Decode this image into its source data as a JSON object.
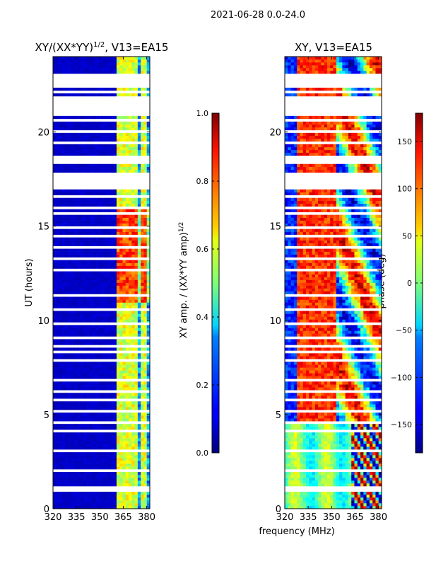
{
  "figure": {
    "suptitle": "2021-06-28 0.0-24.0"
  },
  "panel_amp": {
    "title_main": "XY/(XX*YY)",
    "title_sup": "1/2",
    "title_suffix": ", V13=EA15"
  },
  "panel_phase": {
    "title": "XY, V13=EA15"
  },
  "cbar_amp": {
    "label_main": "XY amp. / (XX*YY amp)",
    "label_sup": "1/2"
  },
  "cbar_phase": {
    "label": "phase (deg)"
  },
  "chart_data": [
    {
      "type": "heatmap",
      "name": "normalized-xy-amplitude",
      "title": "XY/(XX*YY)^1/2, V13=EA15",
      "xlabel": "frequency (MHz)",
      "ylabel": "UT (hours)",
      "xlim": [
        320,
        382
      ],
      "ylim": [
        0,
        24
      ],
      "xticks": [
        320,
        335,
        350,
        365,
        380
      ],
      "yticks": [
        0,
        5,
        10,
        15,
        20
      ],
      "colorbar": {
        "label": "XY amp. / (XX*YY amp)^1/2",
        "range": [
          0.0,
          1.0
        ],
        "ticks": [
          "0.0",
          "0.2",
          "0.4",
          "0.6",
          "0.8",
          "1.0"
        ]
      },
      "flagged_hours": [
        [
          16.9,
          17.9
        ],
        [
          18.3,
          18.8
        ],
        [
          20.8,
          21.9
        ],
        [
          22.4,
          23.1
        ]
      ],
      "features": "low amplitude (~0.0-0.1) below 360 MHz; bright narrow channels (~0.5-0.9) between 360 and 382 MHz"
    },
    {
      "type": "heatmap",
      "name": "xy-phase",
      "title": "XY, V13=EA15",
      "xlabel": "frequency (MHz)",
      "ylabel": "",
      "xlim": [
        320,
        382
      ],
      "ylim": [
        0,
        24
      ],
      "xticks": [
        320,
        335,
        350,
        365,
        380
      ],
      "yticks": [
        0,
        5,
        10,
        15,
        20
      ],
      "colorbar": {
        "label": "phase (deg)",
        "range": [
          -180,
          180
        ],
        "ticks": [
          "−150",
          "−100",
          "−50",
          "0",
          "50",
          "100",
          "150"
        ]
      },
      "flagged_hours": [
        [
          16.9,
          17.9
        ],
        [
          18.3,
          18.8
        ],
        [
          20.8,
          21.9
        ],
        [
          22.4,
          23.1
        ]
      ],
      "features": "phase ~0 deg (0-4.7 h); phase wraps between -180 and 180 deg afterwards"
    }
  ]
}
